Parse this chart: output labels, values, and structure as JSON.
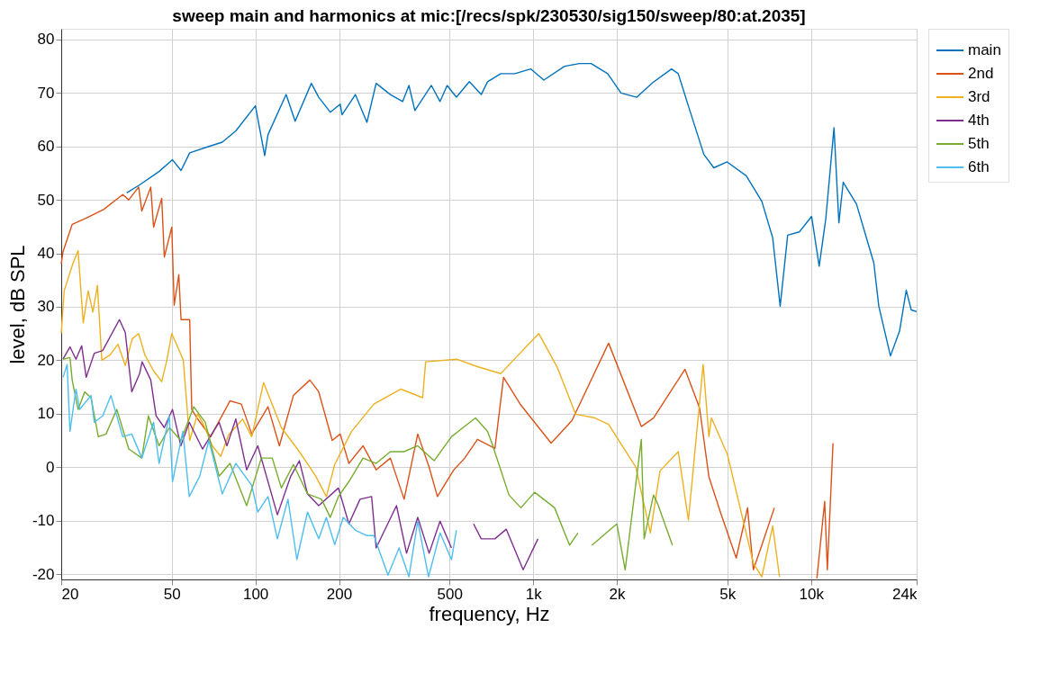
{
  "chart_data": {
    "type": "line",
    "title": "sweep main and harmonics at mic:[/recs/spk/230530/sig150/sweep/80:at.2035]",
    "xlabel": "frequency, Hz",
    "ylabel": "level, dB SPL",
    "log": "x",
    "grid": true,
    "legend": "right",
    "line_style": "solid",
    "xlim": [
      20,
      24000
    ],
    "ylim": [
      -21,
      82
    ],
    "xticks": [
      20,
      50,
      100,
      200,
      500,
      {
        "value": 1000,
        "label": "1k"
      },
      {
        "value": 2000,
        "label": "2k"
      },
      {
        "value": 5000,
        "label": "5k"
      },
      {
        "value": 10000,
        "label": "10k"
      },
      {
        "value": 24000,
        "label": "24k"
      }
    ],
    "yticks": [
      -20,
      -10,
      0,
      10,
      20,
      30,
      40,
      50,
      60,
      70,
      80
    ],
    "series": [
      {
        "name": "main",
        "color": "#0072bd",
        "x": [
          34.4,
          38.3,
          45,
          50.3,
          54,
          58,
          68,
          76,
          85,
          100,
          108,
          111,
          129,
          139,
          159,
          169,
          186,
          202,
          205,
          229,
          252,
          272,
          306,
          339,
          357,
          375,
          430,
          462,
          490,
          529,
          589,
          650,
          685,
          764,
          859,
          979,
          1092,
          1297,
          1468,
          1616,
          1854,
          2070,
          2359,
          2688,
          3147,
          3327,
          3663,
          4115,
          4467,
          4989,
          5845,
          6654,
          7278,
          7745,
          8241,
          9078,
          10050,
          10700,
          11300,
          12100,
          12600,
          13060,
          14580,
          16830,
          17540,
          19320,
          20840,
          22020,
          22950,
          24000
        ],
        "values": [
          51.3,
          52.8,
          55.3,
          57.5,
          55.5,
          58.8,
          60,
          60.8,
          62.9,
          67.6,
          58.3,
          62.2,
          69.7,
          64.7,
          71.8,
          69.2,
          66.4,
          67.9,
          65.9,
          69.7,
          64.5,
          71.8,
          69.7,
          68.4,
          71.4,
          66.7,
          71.4,
          68.4,
          71.4,
          69.2,
          72.1,
          69.7,
          72.1,
          73.6,
          73.6,
          74.5,
          72.4,
          75,
          75.5,
          75.5,
          73.6,
          70,
          69.2,
          71.9,
          74.5,
          73.6,
          66.7,
          58.5,
          56,
          57.1,
          54.5,
          49.7,
          42.9,
          30.1,
          43.4,
          44,
          46.9,
          37.6,
          46.4,
          63.5,
          45.7,
          53.3,
          49.2,
          38.2,
          30.1,
          20.8,
          25.5,
          33.1,
          29.4,
          29.1
        ]
      },
      {
        "name": "2nd",
        "color": "#d95319",
        "x": [
          20,
          20.3,
          21.9,
          24.6,
          28.4,
          33.3,
          35,
          38,
          39,
          42,
          43,
          46,
          47,
          50,
          51,
          53,
          54,
          58,
          59,
          62,
          69,
          81,
          89,
          97,
          111,
          122,
          137,
          157,
          169,
          189,
          202,
          217,
          244,
          272,
          306,
          343,
          384,
          422,
          452,
          518,
          567,
          630,
          728,
          782,
          903,
          1160,
          1378,
          1868,
          2450,
          2710,
          3520,
          3970,
          4290,
          4740,
          5380,
          5910,
          6200,
          6650,
          7380,
          7800,
          10500,
          11200,
          11450,
          12000
        ],
        "values": [
          38,
          40.3,
          45.4,
          46.6,
          48.2,
          51,
          50,
          52.4,
          47.9,
          52.4,
          44.9,
          50.3,
          39.3,
          44.9,
          30.3,
          36,
          27.6,
          27.6,
          10.8,
          9,
          5.7,
          12.4,
          11.8,
          6.2,
          11.3,
          4,
          13.4,
          16.3,
          14.1,
          5,
          6.2,
          0.7,
          4,
          -0.5,
          1.7,
          -6,
          6.2,
          0,
          -5.5,
          -0.5,
          1.7,
          5.2,
          3.5,
          16.8,
          11.6,
          4.5,
          8.7,
          23.2,
          7.6,
          9.2,
          18.3,
          11.1,
          -1.8,
          -8.7,
          -17,
          -7.6,
          -19.2,
          -14.6,
          -7.6,
          null,
          -20.8,
          -6.4,
          -19.2,
          4.5
        ]
      },
      {
        "name": "3rd",
        "color": "#edb120",
        "x": [
          20,
          20.5,
          22,
          23,
          24,
          25,
          26,
          27,
          28,
          30,
          32,
          34,
          36,
          38,
          40,
          43,
          46,
          48,
          50,
          53,
          55,
          58,
          62,
          65,
          70,
          75,
          80,
          90,
          97,
          107,
          124,
          144,
          165,
          180,
          193,
          222,
          267,
          334,
          400,
          410,
          530,
          630,
          764,
          859,
          1047,
          1220,
          1422,
          1668,
          1868,
          2340,
          2641,
          2860,
          3327,
          3620,
          4090,
          4290,
          4380,
          5000,
          6200,
          6650,
          7280,
          7700
        ],
        "values": [
          25,
          33,
          38,
          40.5,
          27,
          33,
          29,
          34,
          20,
          21,
          23,
          19,
          24,
          25,
          21,
          18,
          16,
          20,
          25,
          22,
          20,
          5,
          10,
          8,
          4,
          2,
          6,
          9,
          5.7,
          15.8,
          7.4,
          2.9,
          -1.7,
          -5.5,
          0.5,
          6.7,
          11.8,
          14.6,
          13,
          19.7,
          20.2,
          18.8,
          17.5,
          20.3,
          25,
          18.7,
          9.9,
          9.2,
          8,
          0,
          -12.3,
          -0.7,
          2.9,
          -9.9,
          19.2,
          5.7,
          9.2,
          2.4,
          -18,
          -20.5,
          -11,
          -20.5
        ]
      },
      {
        "name": "4th",
        "color": "#7e2f8e",
        "x": [
          20.3,
          21.5,
          22.6,
          23.7,
          24.6,
          26.3,
          28.2,
          32.4,
          34,
          35.9,
          38.3,
          39.1,
          42,
          43.9,
          47,
          50.3,
          53.9,
          57.8,
          64.5,
          74,
          79,
          85,
          93,
          102,
          120,
          134,
          144,
          154,
          169,
          199,
          217,
          238,
          262,
          272,
          322,
          350,
          384,
          422,
          462,
          508,
          560,
          610,
          650,
          728,
          800,
          920,
          1040
        ],
        "values": [
          20.2,
          22.5,
          20.2,
          22.7,
          16.8,
          21.3,
          21.8,
          27.6,
          25.2,
          14.1,
          17.5,
          19.7,
          16.3,
          9.6,
          7.4,
          10.8,
          4,
          8.4,
          3.4,
          8.4,
          4,
          9,
          -0.5,
          4,
          -8.9,
          -1.7,
          1.2,
          -5,
          -7.2,
          -3.9,
          -10.6,
          -6,
          -5.5,
          -15.1,
          -7.2,
          -16.1,
          -9.4,
          -16.1,
          -10.1,
          -15.1,
          null,
          -10.6,
          -13.4,
          -13.4,
          -11.6,
          -19.2,
          -13.4
        ]
      },
      {
        "name": "5th",
        "color": "#77ac30",
        "x": [
          20.3,
          21.5,
          21.9,
          23,
          24.3,
          25.6,
          27.2,
          29,
          31.7,
          35,
          39,
          41.2,
          45,
          49,
          53.9,
          60,
          66,
          74,
          81,
          93,
          105,
          115,
          124,
          137,
          154,
          173,
          186,
          199,
          217,
          244,
          272,
          306,
          343,
          384,
          440,
          508,
          620,
          685,
          710,
          818,
          903,
          1012,
          1194,
          1352,
          1449,
          1480,
          1627,
          2000,
          2143,
          2450,
          2508,
          2710,
          2818,
          3170
        ],
        "values": [
          20.2,
          20.5,
          16.3,
          10.8,
          14.1,
          13,
          5.7,
          6.2,
          10.8,
          3.4,
          1.7,
          9.6,
          4,
          7.4,
          5,
          11.3,
          8.4,
          -1.7,
          0.7,
          -7.2,
          1.7,
          1.7,
          -3.9,
          0.5,
          -5,
          -6,
          -9.4,
          -5.5,
          -2.7,
          1.7,
          0.7,
          2.9,
          2.9,
          4,
          1.2,
          5.7,
          9.2,
          6.7,
          4.5,
          -5.2,
          -7.6,
          -4.7,
          -7.6,
          -14.6,
          -12.3,
          null,
          -14.6,
          -10.6,
          -19.2,
          5.2,
          -13.4,
          -5.2,
          -7.1,
          -14.6
        ]
      },
      {
        "name": "6th",
        "color": "#4dbeee",
        "x": [
          20.3,
          21,
          21.5,
          22.6,
          23.3,
          25.6,
          26.3,
          28.2,
          30.2,
          33.3,
          35.9,
          39,
          43,
          45,
          49,
          50.3,
          54.8,
          57.8,
          63,
          68,
          76,
          85,
          97,
          102,
          111,
          120,
          131,
          141,
          154,
          169,
          180,
          193,
          207,
          229,
          252,
          267,
          300,
          329,
          357,
          384,
          420,
          462,
          508,
          529
        ],
        "values": [
          16.8,
          19.2,
          6.7,
          14.6,
          10.8,
          13.4,
          8.4,
          9.6,
          13.4,
          5.7,
          6.2,
          1.7,
          8.4,
          0.7,
          9.6,
          -2.7,
          6.7,
          -5.5,
          -1.7,
          5,
          -5,
          0.7,
          -3.4,
          -8.4,
          -5.5,
          -13.4,
          -6,
          -17.3,
          -8.4,
          -13.4,
          -9.4,
          -14.5,
          -9.4,
          -11.8,
          -12.8,
          -12.8,
          -20.2,
          -15.1,
          -20.5,
          -10.1,
          -20.5,
          -12.3,
          -17.3,
          -11.8
        ]
      }
    ]
  }
}
